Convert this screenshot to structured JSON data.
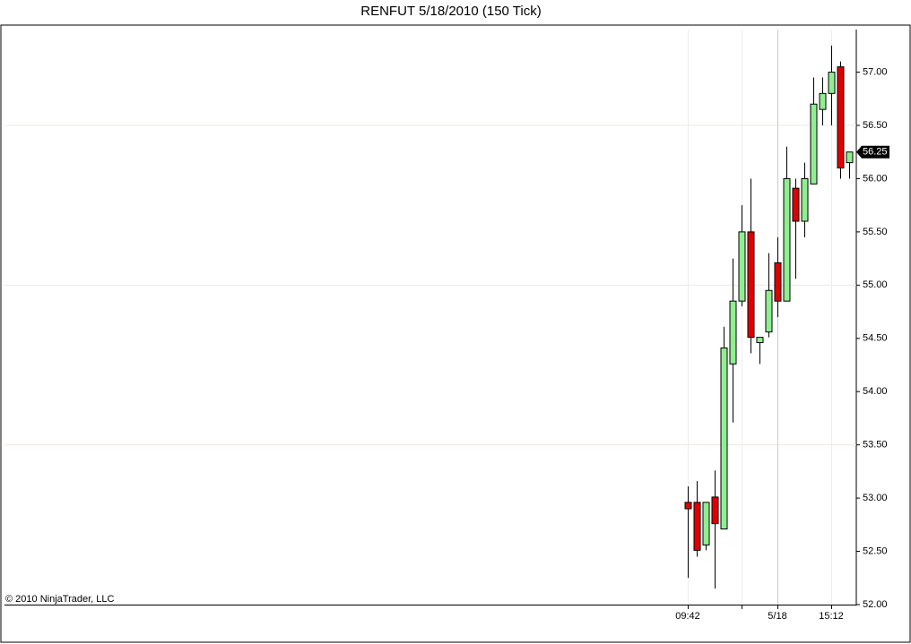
{
  "chart_data": {
    "type": "candlestick",
    "title": "RENFUT  5/18/2010 (150 Tick)",
    "copyright": "© 2010 NinjaTrader, LLC",
    "categories": [
      "09:42",
      null,
      null,
      null,
      null,
      null,
      null,
      null,
      null,
      null,
      "5/18",
      null,
      null,
      null,
      null,
      null,
      "15:12",
      null,
      null
    ],
    "xticks": [
      0,
      6,
      10,
      16
    ],
    "open": [
      52.96,
      52.96,
      52.56,
      53.01,
      52.71,
      54.26,
      54.85,
      55.5,
      54.46,
      54.56,
      55.21,
      54.85,
      55.91,
      55.6,
      55.95,
      56.65,
      56.8,
      57.05,
      56.15
    ],
    "high": [
      53.11,
      53.16,
      52.96,
      53.26,
      54.61,
      55.25,
      55.75,
      56.0,
      54.51,
      55.3,
      55.45,
      56.3,
      56.0,
      56.15,
      56.95,
      56.95,
      57.25,
      57.1,
      56.25
    ],
    "low": [
      52.25,
      52.45,
      52.51,
      52.15,
      52.71,
      53.71,
      54.8,
      54.36,
      54.26,
      54.51,
      54.7,
      54.85,
      55.06,
      55.45,
      55.95,
      56.5,
      56.5,
      56.0,
      56.0
    ],
    "close": [
      52.9,
      52.51,
      52.96,
      52.76,
      54.41,
      54.85,
      55.5,
      54.51,
      54.51,
      54.95,
      54.85,
      56.0,
      55.6,
      56.0,
      56.7,
      56.8,
      57.0,
      56.1,
      56.25
    ],
    "up_color": "#90ee90",
    "down_color": "#e00000",
    "ylim": [
      52.0,
      57.4
    ],
    "yticks": [
      {
        "value": 52,
        "label": "52.00"
      },
      {
        "value": 52.5,
        "label": "52.50"
      },
      {
        "value": 53,
        "label": "53.00"
      },
      {
        "value": 53.5,
        "label": "53.50"
      },
      {
        "value": 54,
        "label": "54.00"
      },
      {
        "value": 54.5,
        "label": "54.50"
      },
      {
        "value": 55,
        "label": "55.00"
      },
      {
        "value": 55.5,
        "label": "55.50"
      },
      {
        "value": 56,
        "label": "56.00"
      },
      {
        "value": 56.5,
        "label": "56.50"
      },
      {
        "value": 57,
        "label": "57.00"
      }
    ],
    "grid_every": 3,
    "last_price": {
      "value": 56.25,
      "label": "56.25"
    }
  }
}
